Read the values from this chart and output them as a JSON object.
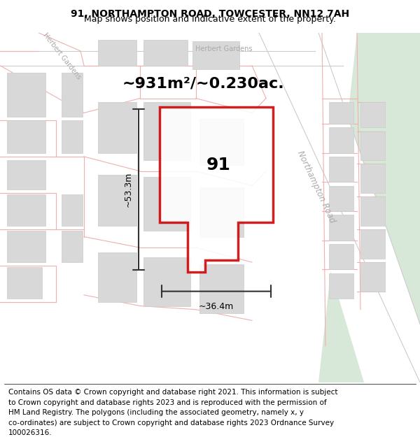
{
  "title_line1": "91, NORTHAMPTON ROAD, TOWCESTER, NN12 7AH",
  "title_line2": "Map shows position and indicative extent of the property.",
  "area_text": "~931m²/~0.230ac.",
  "label_91": "91",
  "dim_vertical": "~53.3m",
  "dim_horizontal": "~36.4m",
  "road_label": "Northampton Road",
  "street_label_left": "Herbert Gardens",
  "street_label_top": "Herbert Gardens",
  "footer_lines": [
    "Contains OS data © Crown copyright and database right 2021. This information is subject",
    "to Crown copyright and database rights 2023 and is reproduced with the permission of",
    "HM Land Registry. The polygons (including the associated geometry, namely x, y",
    "co-ordinates) are subject to Crown copyright and database rights 2023 Ordnance Survey",
    "100026316."
  ],
  "bg_map_color": "#f5f5f5",
  "plot_outline_color": "#cc0000",
  "road_line_color": "#f0b0b0",
  "green_area_color": "#d8e8d8",
  "dim_line_color": "#333333",
  "title_fontsize": 10,
  "subtitle_fontsize": 9,
  "area_fontsize": 16,
  "label_fontsize": 18,
  "footer_fontsize": 7.5
}
